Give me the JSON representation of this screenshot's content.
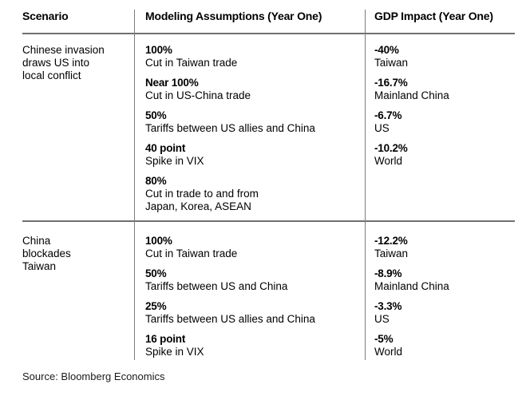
{
  "chart_data": {
    "type": "table",
    "columns": [
      "Scenario",
      "Modeling Assumptions (Year One)",
      "GDP Impact (Year One)"
    ],
    "rows": [
      {
        "scenario": "Chinese invasion draws US into local conflict",
        "scenario_lines": [
          "Chinese invasion",
          "draws US into",
          "local conflict"
        ],
        "assumptions": [
          {
            "value": "100%",
            "desc_lines": [
              "Cut in Taiwan trade"
            ]
          },
          {
            "value": "Near 100%",
            "desc_lines": [
              "Cut in US-China trade"
            ]
          },
          {
            "value": "50%",
            "desc_lines": [
              "Tariffs between US allies and China"
            ]
          },
          {
            "value": "40 point",
            "desc_lines": [
              "Spike in VIX"
            ]
          },
          {
            "value": "80%",
            "desc_lines": [
              "Cut in trade to and from",
              "Japan, Korea, ASEAN"
            ]
          }
        ],
        "impacts": [
          {
            "value": "-40%",
            "region": "Taiwan"
          },
          {
            "value": "-16.7%",
            "region": "Mainland China"
          },
          {
            "value": "-6.7%",
            "region": "US"
          },
          {
            "value": "-10.2%",
            "region": "World"
          }
        ]
      },
      {
        "scenario": "China blockades Taiwan",
        "scenario_lines": [
          "China",
          "blockades",
          "Taiwan"
        ],
        "assumptions": [
          {
            "value": "100%",
            "desc_lines": [
              "Cut in Taiwan trade"
            ]
          },
          {
            "value": "50%",
            "desc_lines": [
              "Tariffs between US and China"
            ]
          },
          {
            "value": "25%",
            "desc_lines": [
              "Tariffs between US allies and China"
            ]
          },
          {
            "value": "16 point",
            "desc_lines": [
              "Spike in VIX"
            ]
          }
        ],
        "impacts": [
          {
            "value": "-12.2%",
            "region": "Taiwan"
          },
          {
            "value": "-8.9%",
            "region": "Mainland China"
          },
          {
            "value": "-3.3%",
            "region": "US"
          },
          {
            "value": "-5%",
            "region": "World"
          }
        ]
      }
    ],
    "source": "Source: Bloomberg Economics",
    "layout": {
      "legend": "none",
      "grid": "column and row dividers only"
    }
  },
  "colors": {
    "background": "#ffffff",
    "text": "#000000",
    "divider": "#6f6f6f"
  }
}
